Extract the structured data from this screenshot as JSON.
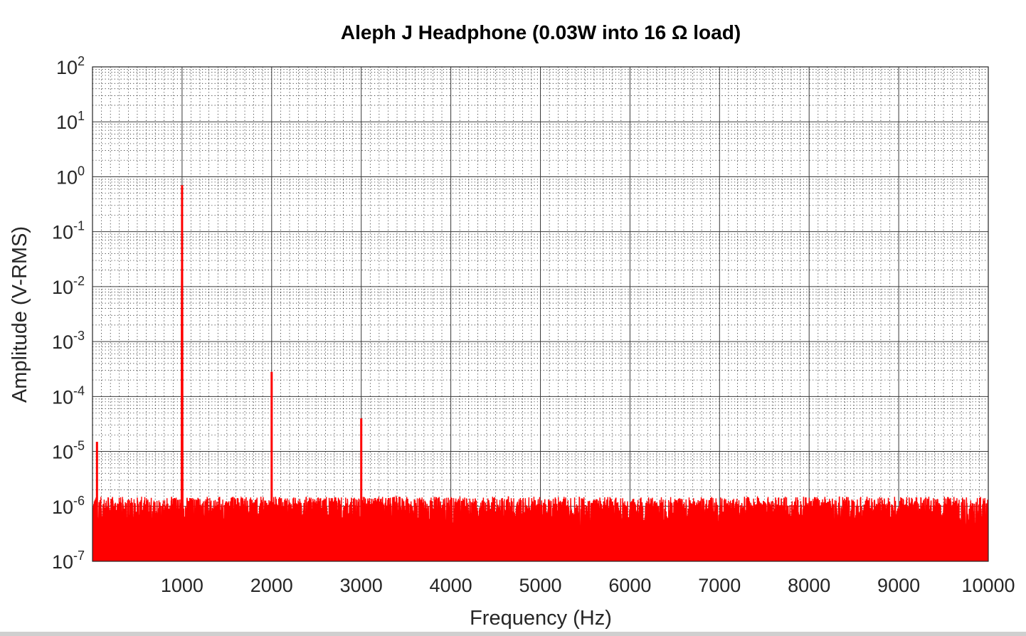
{
  "chart_data": {
    "type": "line",
    "title": "Aleph J Headphone (0.03W into 16 Ω load)",
    "xlabel": "Frequency (Hz)",
    "ylabel": "Amplitude (V-RMS)",
    "xlim": [
      0,
      10000
    ],
    "ylim": [
      1e-07,
      100
    ],
    "yscale": "log",
    "grid": true,
    "minor_grid": true,
    "x_ticks": [
      1000,
      2000,
      3000,
      4000,
      5000,
      6000,
      7000,
      8000,
      9000,
      10000
    ],
    "x_tick_labels": [
      "1000",
      "2000",
      "3000",
      "4000",
      "5000",
      "6000",
      "7000",
      "8000",
      "9000",
      "10000"
    ],
    "y_ticks": [
      {
        "base": "10",
        "exp": "-7",
        "value": 1e-07
      },
      {
        "base": "10",
        "exp": "-6",
        "value": 1e-06
      },
      {
        "base": "10",
        "exp": "-5",
        "value": 1e-05
      },
      {
        "base": "10",
        "exp": "-4",
        "value": 0.0001
      },
      {
        "base": "10",
        "exp": "-3",
        "value": 0.001
      },
      {
        "base": "10",
        "exp": "-2",
        "value": 0.01
      },
      {
        "base": "10",
        "exp": "-1",
        "value": 0.1
      },
      {
        "base": "10",
        "exp": "0",
        "value": 1
      },
      {
        "base": "10",
        "exp": "1",
        "value": 10
      },
      {
        "base": "10",
        "exp": "2",
        "value": 100
      }
    ],
    "series": [
      {
        "color": "#ff0000",
        "noise_floor_range": [
          1e-07,
          1.5e-06
        ],
        "peaks": [
          {
            "x": 50,
            "y": 1.5e-05
          },
          {
            "x": 1000,
            "y": 0.7
          },
          {
            "x": 2000,
            "y": 0.00028
          },
          {
            "x": 3000,
            "y": 4e-05
          }
        ]
      }
    ]
  }
}
